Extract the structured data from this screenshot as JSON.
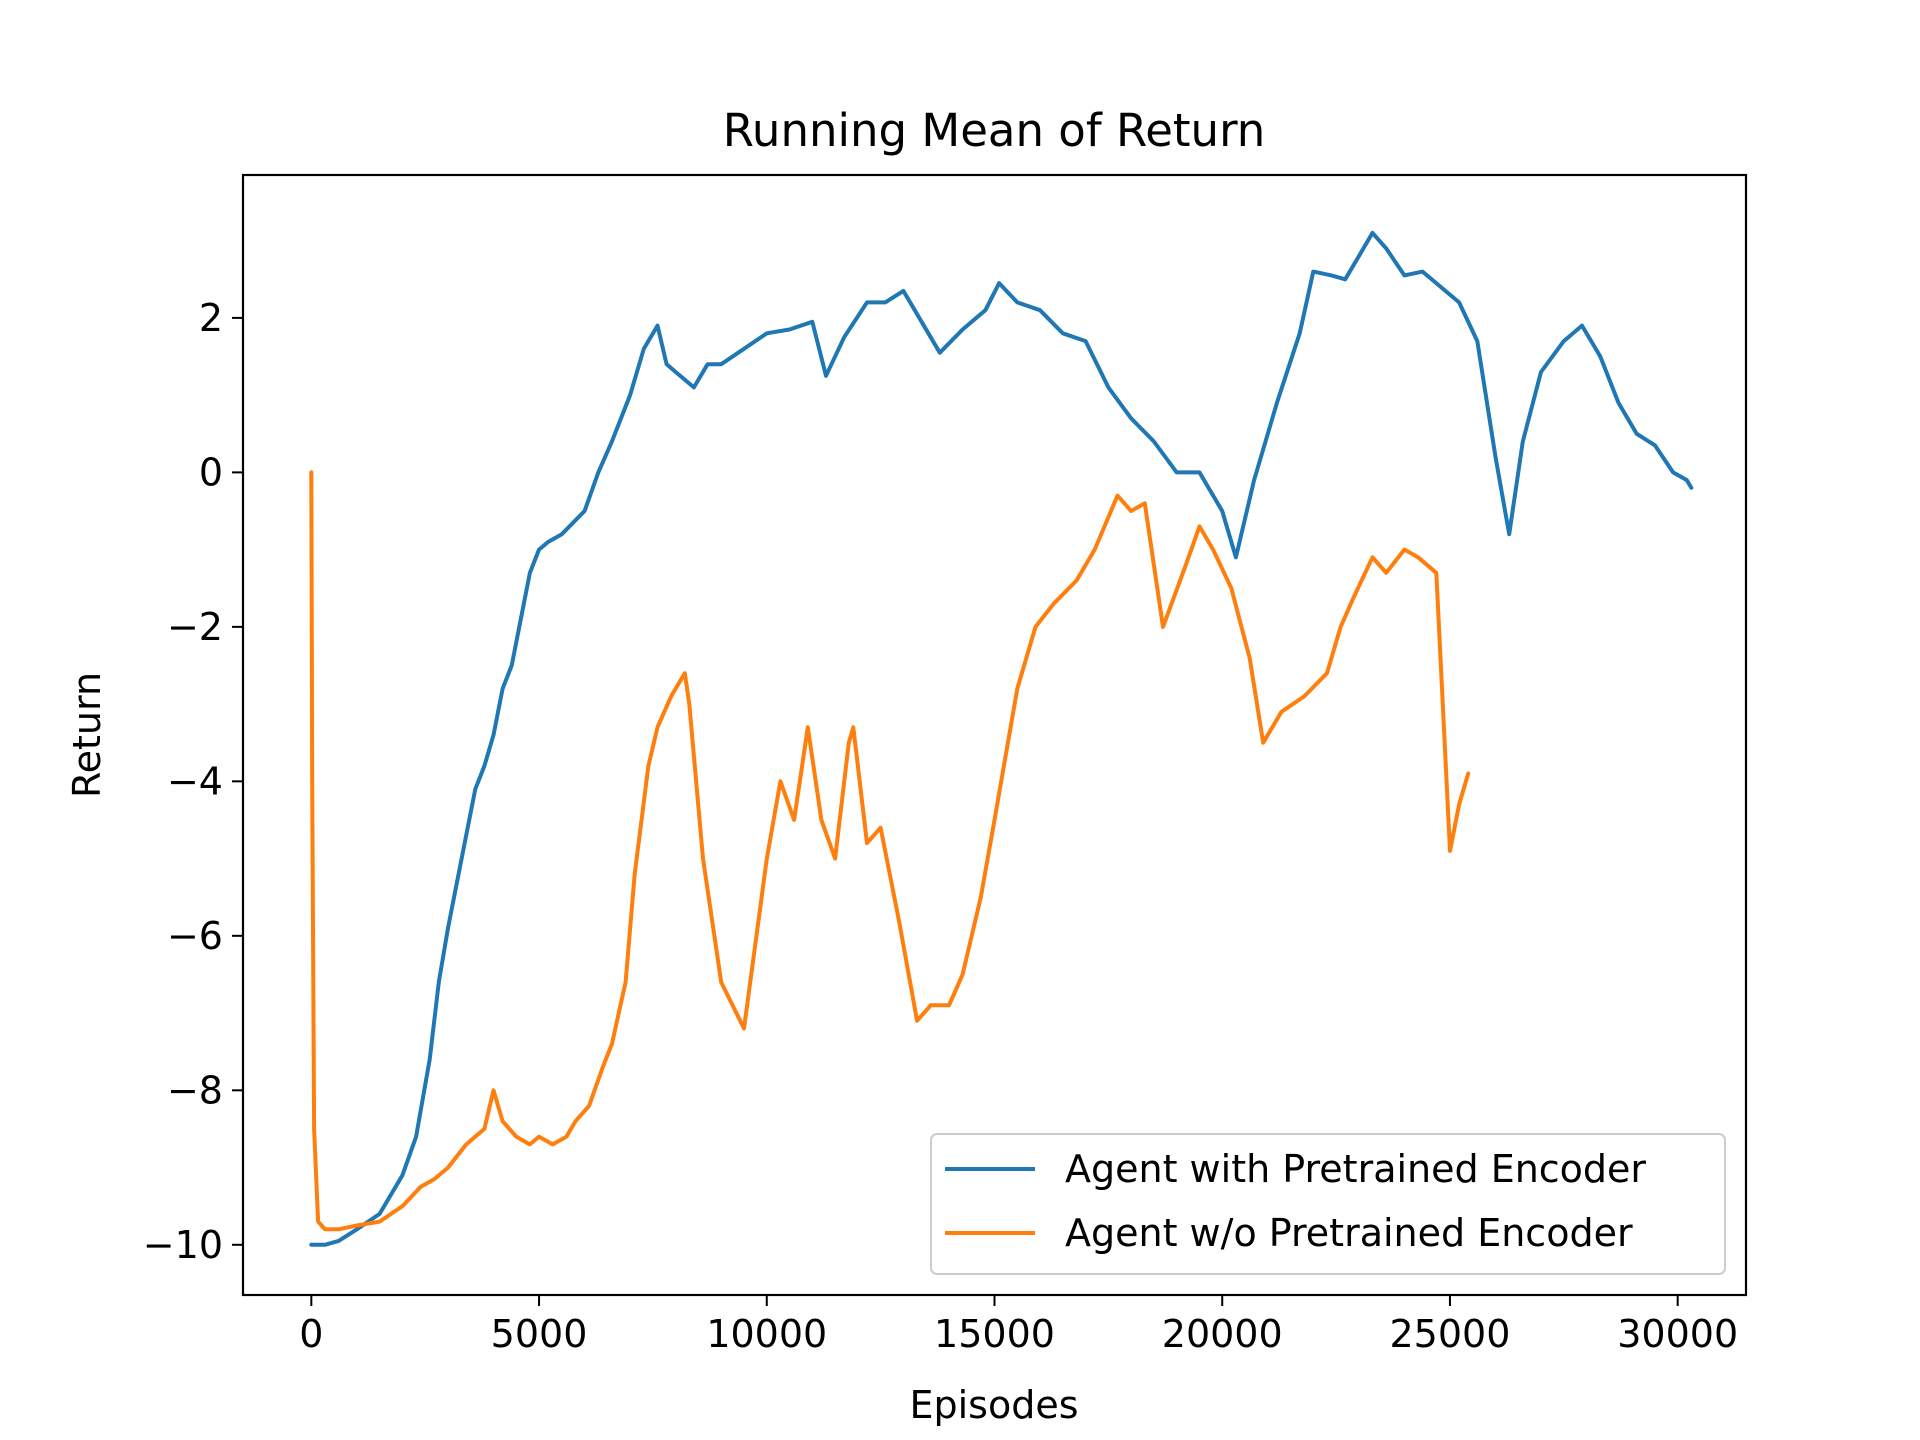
{
  "chart_data": {
    "type": "line",
    "title": "Running Mean of Return",
    "xlabel": "Episodes",
    "ylabel": "Return",
    "xlim": [
      -1500,
      31500
    ],
    "ylim": [
      -10.65,
      3.85
    ],
    "xticks": [
      0,
      5000,
      10000,
      15000,
      20000,
      25000,
      30000
    ],
    "xtick_labels": [
      "0",
      "5000",
      "10000",
      "15000",
      "20000",
      "25000",
      "30000"
    ],
    "yticks": [
      -10,
      -8,
      -6,
      -4,
      -2,
      0,
      2
    ],
    "ytick_labels": [
      "−10",
      "−8",
      "−6",
      "−4",
      "−2",
      "0",
      "2"
    ],
    "grid": false,
    "legend_position": "lower-right",
    "series": [
      {
        "name": "Agent with Pretrained Encoder",
        "color": "#1f77b4",
        "x": [
          0,
          300,
          600,
          1000,
          1500,
          2000,
          2300,
          2600,
          2800,
          3000,
          3300,
          3600,
          3800,
          4000,
          4200,
          4400,
          4600,
          4800,
          5000,
          5200,
          5500,
          6000,
          6300,
          6600,
          7000,
          7300,
          7600,
          7800,
          8000,
          8400,
          8700,
          9000,
          9500,
          10000,
          10500,
          11000,
          11300,
          11700,
          12200,
          12600,
          13000,
          13400,
          13800,
          14300,
          14800,
          15100,
          15500,
          16000,
          16500,
          17000,
          17500,
          18000,
          18500,
          19000,
          19500,
          20000,
          20300,
          20700,
          21200,
          21700,
          22000,
          22400,
          22700,
          23000,
          23300,
          23600,
          24000,
          24400,
          24800,
          25200,
          25600,
          26000,
          26300,
          26600,
          27000,
          27500,
          27900,
          28300,
          28700,
          29100,
          29500,
          29900,
          30200,
          30300
        ],
        "values": [
          -10.0,
          -10.0,
          -9.95,
          -9.8,
          -9.6,
          -9.1,
          -8.6,
          -7.6,
          -6.6,
          -5.9,
          -5.0,
          -4.1,
          -3.8,
          -3.4,
          -2.8,
          -2.5,
          -1.9,
          -1.3,
          -1.0,
          -0.9,
          -0.8,
          -0.5,
          0.0,
          0.4,
          1.0,
          1.6,
          1.9,
          1.4,
          1.3,
          1.1,
          1.4,
          1.4,
          1.6,
          1.8,
          1.85,
          1.95,
          1.25,
          1.75,
          2.2,
          2.2,
          2.35,
          1.95,
          1.55,
          1.85,
          2.1,
          2.45,
          2.2,
          2.1,
          1.8,
          1.7,
          1.1,
          0.7,
          0.4,
          0.0,
          0.0,
          -0.5,
          -1.1,
          -0.1,
          0.9,
          1.8,
          2.6,
          2.55,
          2.5,
          2.8,
          3.1,
          2.9,
          2.55,
          2.6,
          2.4,
          2.2,
          1.7,
          0.2,
          -0.8,
          0.4,
          1.3,
          1.7,
          1.9,
          1.5,
          0.9,
          0.5,
          0.35,
          0.0,
          -0.1,
          -0.2
        ]
      },
      {
        "name": "Agent w/o Pretrained Encoder",
        "color": "#ff7f0e",
        "x": [
          0,
          20,
          60,
          150,
          300,
          600,
          1000,
          1500,
          2000,
          2400,
          2700,
          3000,
          3400,
          3800,
          4000,
          4200,
          4500,
          4800,
          5000,
          5300,
          5600,
          5800,
          6100,
          6400,
          6600,
          6900,
          7100,
          7400,
          7600,
          7900,
          8200,
          8300,
          8600,
          9000,
          9500,
          10000,
          10300,
          10600,
          10900,
          11200,
          11500,
          11800,
          11900,
          12200,
          12500,
          12900,
          13300,
          13600,
          14000,
          14300,
          14700,
          15000,
          15500,
          15900,
          16300,
          16800,
          17200,
          17700,
          18000,
          18300,
          18700,
          19200,
          19500,
          19800,
          20200,
          20600,
          20900,
          21300,
          21800,
          22300,
          22600,
          22900,
          23300,
          23600,
          24000,
          24300,
          24700,
          25000,
          25200,
          25400
        ],
        "values": [
          0.0,
          -4.0,
          -8.5,
          -9.7,
          -9.8,
          -9.8,
          -9.75,
          -9.7,
          -9.5,
          -9.25,
          -9.15,
          -9.0,
          -8.7,
          -8.5,
          -8.0,
          -8.4,
          -8.6,
          -8.7,
          -8.6,
          -8.7,
          -8.6,
          -8.4,
          -8.2,
          -7.7,
          -7.4,
          -6.6,
          -5.2,
          -3.8,
          -3.3,
          -2.9,
          -2.6,
          -3.0,
          -5.0,
          -6.6,
          -7.2,
          -5.0,
          -4.0,
          -4.5,
          -3.3,
          -4.5,
          -5.0,
          -3.5,
          -3.3,
          -4.8,
          -4.6,
          -5.8,
          -7.1,
          -6.9,
          -6.9,
          -6.5,
          -5.5,
          -4.5,
          -2.8,
          -2.0,
          -1.7,
          -1.4,
          -1.0,
          -0.3,
          -0.5,
          -0.4,
          -2.0,
          -1.2,
          -0.7,
          -1.0,
          -1.5,
          -2.4,
          -3.5,
          -3.1,
          -2.9,
          -2.6,
          -2.0,
          -1.6,
          -1.1,
          -1.3,
          -1.0,
          -1.1,
          -1.3,
          -4.9,
          -4.3,
          -3.9
        ]
      }
    ]
  }
}
